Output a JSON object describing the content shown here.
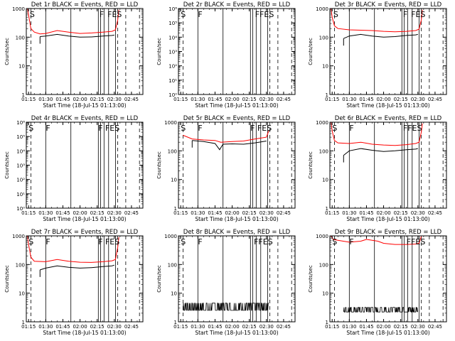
{
  "figure": {
    "colors": {
      "events": "#000000",
      "lld": "#ff0000",
      "axis": "#000000"
    }
  },
  "chart_data": [
    {
      "type": "line",
      "title": "Det 1r BLACK = Events, RED = LLD",
      "xlabel": "Start Time (18-Jul-15 01:13:00)",
      "ylabel": "Counts/sec",
      "xlim": [
        "01:13",
        "02:55"
      ],
      "xticks": [
        "01:15",
        "01:30",
        "01:45",
        "02:00",
        "02:15",
        "02:30",
        "02:45"
      ],
      "yscale": "log",
      "ylim": [
        1,
        1000
      ],
      "yticks": [
        "1",
        "10",
        "100",
        "1000"
      ],
      "vlines_solid": [
        "01:30",
        "01:52",
        "02:16",
        "02:18",
        "02:21",
        "02:25",
        "02:31"
      ],
      "vlines_dashed": [
        "01:17",
        "02:33",
        "02:40",
        "02:52"
      ],
      "annotations": [
        {
          "text": "S",
          "x": "01:16"
        },
        {
          "text": "F",
          "x": "02:17"
        },
        {
          "text": "FES",
          "x": "02:24"
        }
      ],
      "series": [
        {
          "name": "LLD",
          "color": "#ff0000",
          "x": [
            "01:14",
            "01:15",
            "01:17",
            "01:20",
            "01:25",
            "01:30",
            "01:40",
            "01:50",
            "02:00",
            "02:10",
            "02:20",
            "02:28",
            "02:31",
            "02:33",
            "02:34"
          ],
          "y": [
            1000,
            600,
            200,
            150,
            130,
            135,
            170,
            150,
            135,
            140,
            150,
            160,
            180,
            400,
            900
          ]
        },
        {
          "name": "Events",
          "color": "#000000",
          "x": [
            "01:25",
            "01:30",
            "01:40",
            "01:50",
            "02:00",
            "02:10",
            "02:20",
            "02:28",
            "02:30"
          ],
          "y": [
            105,
            110,
            125,
            110,
            100,
            102,
            110,
            115,
            118
          ]
        }
      ]
    },
    {
      "type": "line",
      "title": "Det 2r BLACK = Events, RED = LLD",
      "xlabel": "Start Time (18-Jul-15 01:13:00)",
      "ylabel": "Counts/sec",
      "xlim": [
        "01:13",
        "02:55"
      ],
      "xticks": [
        "01:15",
        "01:30",
        "01:45",
        "02:00",
        "02:15",
        "02:30",
        "02:45"
      ],
      "yscale": "log",
      "ylim": [
        1,
        1000000
      ],
      "yticks": [
        "10⁰",
        "10¹",
        "10²",
        "10³",
        "10⁴",
        "10⁵",
        "10⁶"
      ],
      "vlines_solid": [
        "01:30",
        "01:52",
        "02:16",
        "02:18",
        "02:21",
        "02:25",
        "02:31"
      ],
      "vlines_dashed": [
        "01:17",
        "02:33",
        "02:40",
        "02:52"
      ],
      "annotations": [
        {
          "text": "S",
          "x": "01:15"
        },
        {
          "text": "F",
          "x": "01:30"
        },
        {
          "text": "FFES",
          "x": "02:20"
        }
      ],
      "series": []
    },
    {
      "type": "line",
      "title": "Det 3r BLACK = Events, RED = LLD",
      "xlabel": "Start Time (18-Jul-15 01:13:00)",
      "ylabel": "Counts/sec",
      "xlim": [
        "01:13",
        "02:55"
      ],
      "xticks": [
        "01:15",
        "01:30",
        "01:45",
        "02:00",
        "02:15",
        "02:30",
        "02:45"
      ],
      "yscale": "log",
      "ylim": [
        1,
        1000
      ],
      "yticks": [
        "1",
        "10",
        "100",
        "1000"
      ],
      "vlines_solid": [
        "01:30",
        "01:52",
        "02:16",
        "02:18",
        "02:21",
        "02:25",
        "02:31"
      ],
      "vlines_dashed": [
        "01:17",
        "02:33",
        "02:40",
        "02:52"
      ],
      "annotations": [
        {
          "text": "S",
          "x": "01:16"
        },
        {
          "text": "F",
          "x": "02:17"
        },
        {
          "text": "FES",
          "x": "02:24"
        }
      ],
      "series": [
        {
          "name": "LLD",
          "color": "#ff0000",
          "x": [
            "01:14",
            "01:15",
            "01:17",
            "01:20",
            "01:30",
            "01:40",
            "01:50",
            "02:00",
            "02:10",
            "02:20",
            "02:28",
            "02:31",
            "02:33",
            "02:34"
          ],
          "y": [
            1000,
            500,
            250,
            200,
            180,
            175,
            170,
            160,
            155,
            160,
            170,
            190,
            400,
            900
          ]
        },
        {
          "name": "Events",
          "color": "#000000",
          "x": [
            "01:25",
            "01:30",
            "01:40",
            "01:50",
            "02:00",
            "02:10",
            "02:20",
            "02:28",
            "02:30"
          ],
          "y": [
            90,
            110,
            125,
            110,
            100,
            105,
            115,
            120,
            125
          ]
        }
      ]
    },
    {
      "type": "line",
      "title": "Det 4r BLACK = Events, RED = LLD",
      "xlabel": "Start Time (18-Jul-15 01:13:00)",
      "ylabel": "Counts/sec",
      "xlim": [
        "01:13",
        "02:55"
      ],
      "xticks": [
        "01:15",
        "01:30",
        "01:45",
        "02:00",
        "02:15",
        "02:30",
        "02:45"
      ],
      "yscale": "log",
      "ylim": [
        1,
        1000000
      ],
      "yticks": [
        "10⁰",
        "10¹",
        "10²",
        "10³",
        "10⁴",
        "10⁵",
        "10⁶"
      ],
      "vlines_solid": [
        "01:30",
        "01:52",
        "02:16",
        "02:18",
        "02:21",
        "02:25",
        "02:31"
      ],
      "vlines_dashed": [
        "01:17",
        "02:33",
        "02:40",
        "02:52"
      ],
      "annotations": [
        {
          "text": "S",
          "x": "01:15"
        },
        {
          "text": "F",
          "x": "01:30"
        },
        {
          "text": "F",
          "x": "02:16"
        },
        {
          "text": "FES",
          "x": "02:22"
        }
      ],
      "series": []
    },
    {
      "type": "line",
      "title": "Det 5r BLACK = Events, RED = LLD",
      "xlabel": "Start Time (18-Jul-15 01:13:00)",
      "ylabel": "Counts/sec",
      "xlim": [
        "01:13",
        "02:55"
      ],
      "xticks": [
        "01:15",
        "01:30",
        "01:45",
        "02:00",
        "02:15",
        "02:30",
        "02:45"
      ],
      "yscale": "log",
      "ylim": [
        1,
        1000
      ],
      "yticks": [
        "1",
        "10",
        "100",
        "1000"
      ],
      "vlines_solid": [
        "01:30",
        "01:52",
        "02:16",
        "02:18",
        "02:21",
        "02:25",
        "02:31"
      ],
      "vlines_dashed": [
        "01:17",
        "02:33",
        "02:40",
        "02:52"
      ],
      "annotations": [
        {
          "text": "S",
          "x": "01:15"
        },
        {
          "text": "F",
          "x": "01:30"
        },
        {
          "text": "F",
          "x": "02:16"
        },
        {
          "text": "FES",
          "x": "02:22"
        }
      ],
      "series": [
        {
          "name": "LLD",
          "color": "#ff0000",
          "x": [
            "01:17",
            "01:25",
            "01:35",
            "01:45",
            "01:50",
            "02:00",
            "02:10",
            "02:20",
            "02:30",
            "02:32"
          ],
          "y": [
            350,
            260,
            240,
            230,
            200,
            210,
            220,
            260,
            300,
            500
          ]
        },
        {
          "name": "Events",
          "color": "#000000",
          "x": [
            "01:25",
            "01:35",
            "01:45",
            "01:49",
            "01:52",
            "02:00",
            "02:10",
            "02:20",
            "02:30"
          ],
          "y": [
            230,
            210,
            180,
            110,
            170,
            175,
            170,
            190,
            220
          ]
        }
      ]
    },
    {
      "type": "line",
      "title": "Det 6r BLACK = Events, RED = LLD",
      "xlabel": "Start Time (18-Jul-15 01:13:00)",
      "ylabel": "Counts/sec",
      "xlim": [
        "01:13",
        "02:55"
      ],
      "xticks": [
        "01:15",
        "01:30",
        "01:45",
        "02:00",
        "02:15",
        "02:30",
        "02:45"
      ],
      "yscale": "log",
      "ylim": [
        1,
        1000
      ],
      "yticks": [
        "1",
        "10",
        "100",
        "1000"
      ],
      "vlines_solid": [
        "01:30",
        "01:52",
        "02:16",
        "02:18",
        "02:21",
        "02:25",
        "02:31"
      ],
      "vlines_dashed": [
        "01:17",
        "02:33",
        "02:40",
        "02:52"
      ],
      "annotations": [
        {
          "text": "S",
          "x": "01:15"
        },
        {
          "text": "F",
          "x": "01:30"
        },
        {
          "text": "FFES",
          "x": "02:17"
        }
      ],
      "series": [
        {
          "name": "LLD",
          "color": "#ff0000",
          "x": [
            "01:14",
            "01:15",
            "01:17",
            "01:20",
            "01:30",
            "01:40",
            "01:50",
            "02:00",
            "02:10",
            "02:20",
            "02:28",
            "02:31",
            "02:33",
            "02:34"
          ],
          "y": [
            1000,
            500,
            230,
            190,
            180,
            200,
            170,
            160,
            155,
            165,
            180,
            200,
            450,
            900
          ]
        },
        {
          "name": "Events",
          "color": "#000000",
          "x": [
            "01:25",
            "01:30",
            "01:40",
            "01:50",
            "02:00",
            "02:10",
            "02:20",
            "02:28",
            "02:30"
          ],
          "y": [
            70,
            100,
            120,
            105,
            95,
            100,
            110,
            115,
            120
          ]
        }
      ]
    },
    {
      "type": "line",
      "title": "Det 7r BLACK = Events, RED = LLD",
      "xlabel": "Start Time (18-Jul-15 01:13:00)",
      "ylabel": "Counts/sec",
      "xlim": [
        "01:13",
        "02:55"
      ],
      "xticks": [
        "01:15",
        "01:30",
        "01:45",
        "02:00",
        "02:15",
        "02:30",
        "02:45"
      ],
      "yscale": "log",
      "ylim": [
        1,
        1000
      ],
      "yticks": [
        "1",
        "10",
        "100",
        "1000"
      ],
      "vlines_solid": [
        "01:30",
        "01:52",
        "02:16",
        "02:18",
        "02:21",
        "02:25",
        "02:31"
      ],
      "vlines_dashed": [
        "01:17",
        "02:33",
        "02:40",
        "02:52"
      ],
      "annotations": [
        {
          "text": "S",
          "x": "01:15"
        },
        {
          "text": "F",
          "x": "01:30"
        },
        {
          "text": "F",
          "x": "02:16"
        },
        {
          "text": "FES",
          "x": "02:22"
        }
      ],
      "series": [
        {
          "name": "LLD",
          "color": "#ff0000",
          "x": [
            "01:14",
            "01:15",
            "01:17",
            "01:20",
            "01:30",
            "01:40",
            "01:50",
            "02:00",
            "02:10",
            "02:20",
            "02:28",
            "02:31",
            "02:33",
            "02:34"
          ],
          "y": [
            1000,
            500,
            180,
            130,
            125,
            150,
            130,
            120,
            118,
            125,
            135,
            150,
            400,
            900
          ]
        },
        {
          "name": "Events",
          "color": "#000000",
          "x": [
            "01:25",
            "01:30",
            "01:40",
            "01:50",
            "02:00",
            "02:10",
            "02:20",
            "02:28",
            "02:30"
          ],
          "y": [
            65,
            75,
            90,
            80,
            75,
            78,
            85,
            90,
            95
          ]
        }
      ]
    },
    {
      "type": "line",
      "title": "Det 8r BLACK = Events, RED = LLD",
      "xlabel": "Start Time (18-Jul-15 01:13:00)",
      "ylabel": "Counts/sec",
      "xlim": [
        "01:13",
        "02:55"
      ],
      "xticks": [
        "01:15",
        "01:30",
        "01:45",
        "02:00",
        "02:15",
        "02:30",
        "02:45"
      ],
      "yscale": "log",
      "ylim": [
        1,
        1000
      ],
      "yticks": [
        "1",
        "10",
        "100",
        "1000"
      ],
      "vlines_solid": [
        "01:30",
        "01:52",
        "02:16",
        "02:18",
        "02:21",
        "02:25",
        "02:31"
      ],
      "vlines_dashed": [
        "01:17",
        "02:33",
        "02:40",
        "02:52"
      ],
      "annotations": [
        {
          "text": "S",
          "x": "01:15"
        },
        {
          "text": "F",
          "x": "01:30"
        },
        {
          "text": "FFES",
          "x": "02:19"
        }
      ],
      "series": [
        {
          "name": "Events",
          "color": "#000000",
          "noise": true,
          "x_range": [
            "01:17",
            "02:32"
          ],
          "y_levels": [
            2.5,
            4.5
          ]
        }
      ]
    },
    {
      "type": "line",
      "title": "Det 9r BLACK = Events, RED = LLD",
      "xlabel": "Start Time (18-Jul-15 01:13:00)",
      "ylabel": "Counts/sec",
      "xlim": [
        "01:13",
        "02:55"
      ],
      "xticks": [
        "01:15",
        "01:30",
        "01:45",
        "02:00",
        "02:15",
        "02:30",
        "02:45"
      ],
      "yscale": "log",
      "ylim": [
        1,
        1000
      ],
      "yticks": [
        "1",
        "10",
        "100",
        "1000"
      ],
      "vlines_solid": [
        "01:30",
        "01:52",
        "02:16",
        "02:18",
        "02:21",
        "02:25",
        "02:31"
      ],
      "vlines_dashed": [
        "01:17",
        "02:33",
        "02:40",
        "02:52"
      ],
      "annotations": [
        {
          "text": "S",
          "x": "01:15"
        },
        {
          "text": "F",
          "x": "01:30"
        },
        {
          "text": "FFES",
          "x": "02:20"
        }
      ],
      "series": [
        {
          "name": "LLD",
          "color": "#ff0000",
          "x": [
            "01:14",
            "01:16",
            "01:20",
            "01:30",
            "01:40",
            "01:45",
            "01:50",
            "01:55",
            "02:00",
            "02:10",
            "02:20",
            "02:28",
            "02:31",
            "02:33"
          ],
          "y": [
            1000,
            750,
            700,
            600,
            650,
            750,
            700,
            650,
            550,
            500,
            500,
            520,
            550,
            950
          ]
        },
        {
          "name": "Events",
          "color": "#000000",
          "noise": true,
          "x_range": [
            "01:25",
            "02:30"
          ],
          "y_levels": [
            2.2,
            3.2
          ]
        }
      ]
    }
  ]
}
